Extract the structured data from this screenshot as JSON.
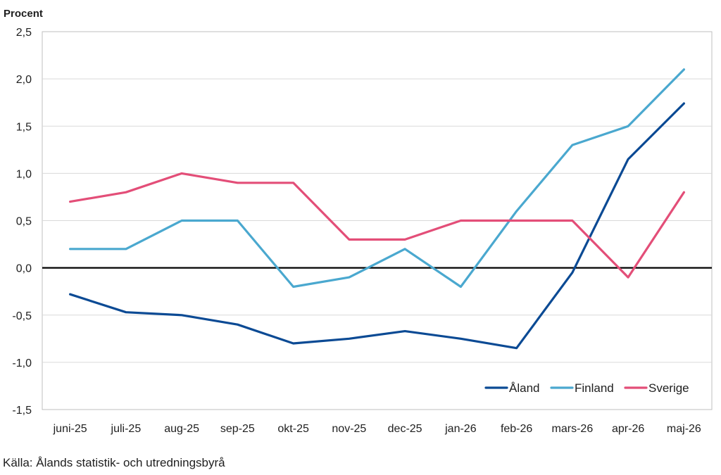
{
  "chart_data": {
    "type": "line",
    "title": "",
    "ylabel": "Procent",
    "xlabel": "",
    "categories": [
      "juni-25",
      "juli-25",
      "aug-25",
      "sep-25",
      "okt-25",
      "nov-25",
      "dec-25",
      "jan-26",
      "feb-26",
      "mars-26",
      "apr-26",
      "maj-26"
    ],
    "ylim": [
      -1.5,
      2.5
    ],
    "yticks": [
      -1.5,
      -1.0,
      -0.5,
      0.0,
      0.5,
      1.0,
      1.5,
      2.0,
      2.5
    ],
    "ytick_labels": [
      "-1,5",
      "-1,0",
      "-0,5",
      "0,0",
      "0,5",
      "1,0",
      "1,5",
      "2,0",
      "2,5"
    ],
    "grid": true,
    "legend_position": "bottom-right",
    "series": [
      {
        "name": "Åland",
        "color": "#0b4a94",
        "values": [
          -0.28,
          -0.47,
          -0.5,
          -0.6,
          -0.8,
          -0.75,
          -0.67,
          -0.75,
          -0.85,
          -0.05,
          1.15,
          1.74
        ]
      },
      {
        "name": "Finland",
        "color": "#4aa8cf",
        "values": [
          0.2,
          0.2,
          0.5,
          0.5,
          -0.2,
          -0.1,
          0.2,
          -0.2,
          0.6,
          1.3,
          1.5,
          2.1
        ]
      },
      {
        "name": "Sverige",
        "color": "#e34e78",
        "values": [
          0.7,
          0.8,
          1.0,
          0.9,
          0.9,
          0.3,
          0.3,
          0.5,
          0.5,
          0.5,
          -0.1,
          0.8
        ]
      }
    ]
  },
  "source": "Källa: Ålands statistik- och utredningsbyrå"
}
